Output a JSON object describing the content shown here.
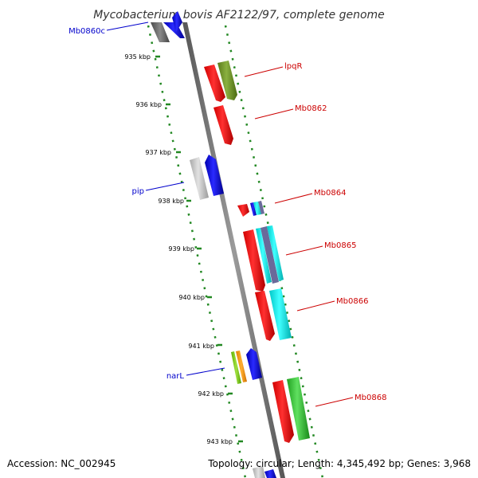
{
  "title": "Mycobacterium bovis AF2122/97, complete genome",
  "footer": {
    "accession": "Accession: NC_002945",
    "summary": "Topology: circular; Length: 4,345,492 bp; Genes: 3,968"
  },
  "colors": {
    "backbone": "#777777",
    "tick": "#228822",
    "reverse_label": "#0000cc",
    "forward_label": "#cc0000"
  },
  "ticks": [
    "935 kbp",
    "936 kbp",
    "937 kbp",
    "938 kbp",
    "939 kbp",
    "940 kbp",
    "941 kbp",
    "942 kbp",
    "943 kbp"
  ],
  "gene_labels": {
    "reverse": [
      "Mb0860c",
      "pip",
      "narL"
    ],
    "forward": [
      "lpqR",
      "Mb0862",
      "Mb0864",
      "Mb0865",
      "Mb0866",
      "Mb0868"
    ]
  }
}
